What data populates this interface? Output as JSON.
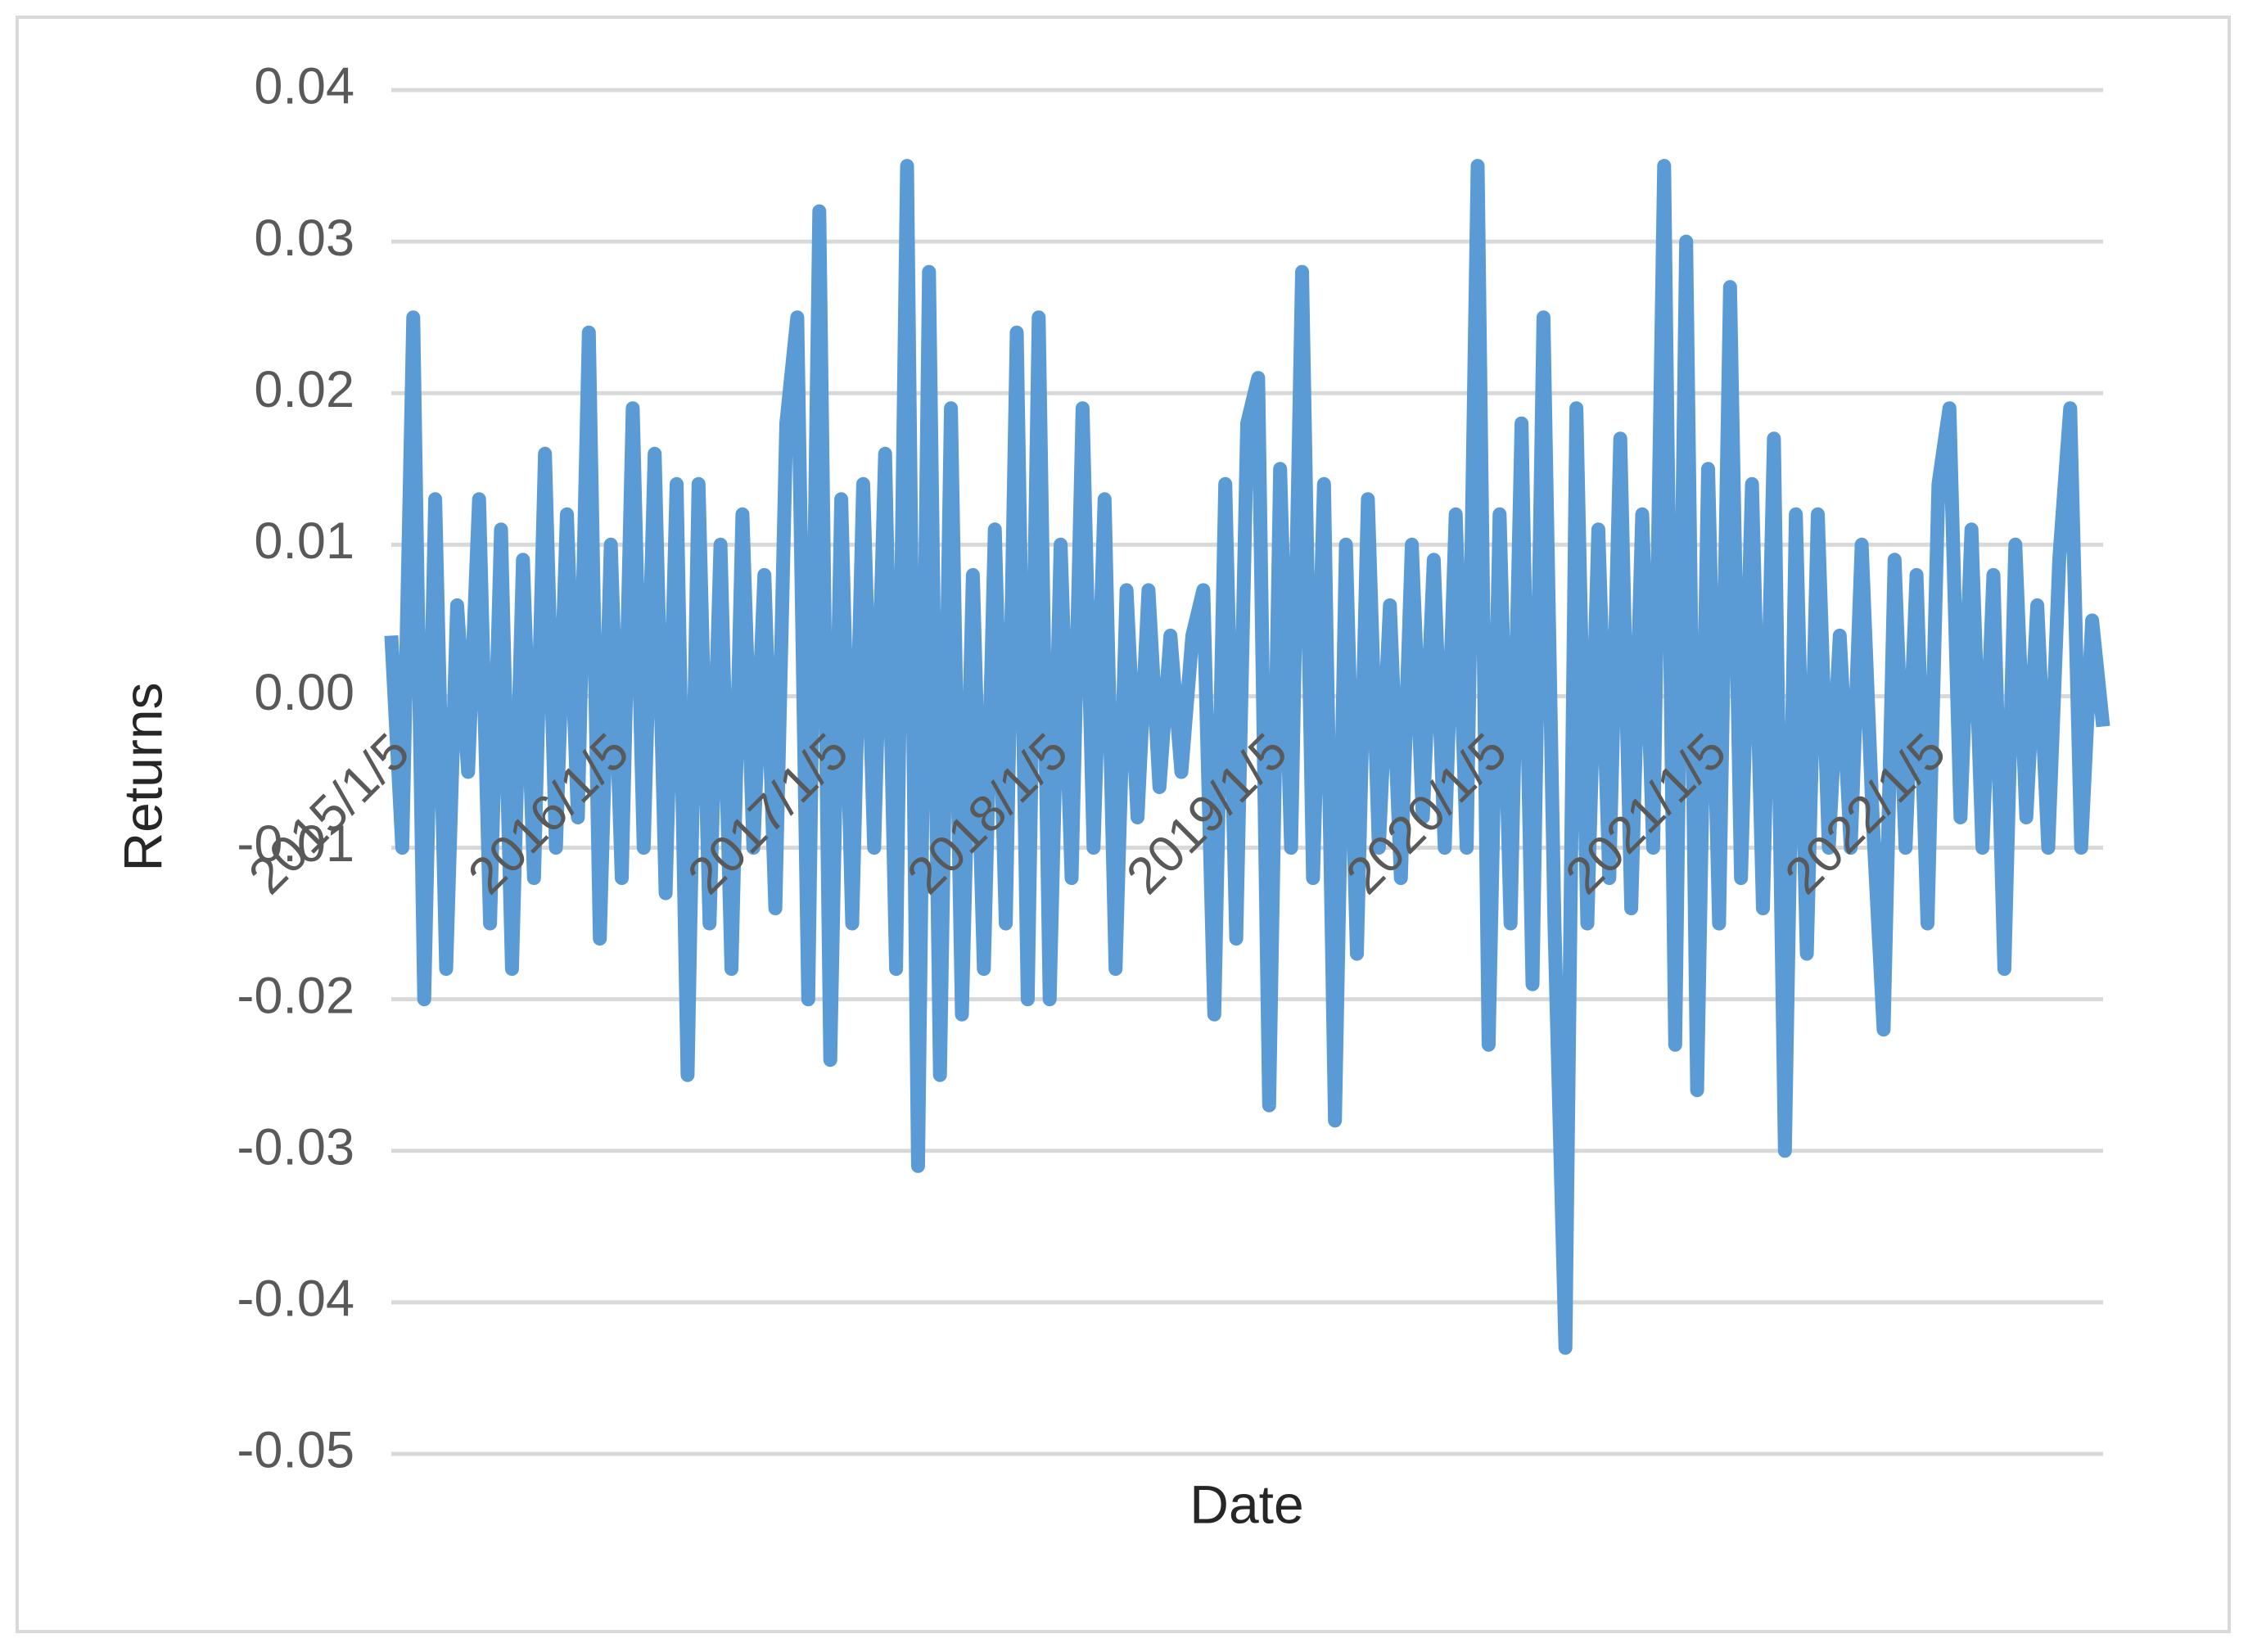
{
  "chart_data": {
    "type": "line",
    "x_label": "Date",
    "y_label": "Returns",
    "categories": [
      "2015/1/5",
      null,
      null,
      null,
      null,
      null,
      null,
      null,
      null,
      null,
      null,
      null,
      null,
      null,
      null,
      null,
      null,
      null,
      null,
      null,
      "2016/1/5",
      null,
      null,
      null,
      null,
      null,
      null,
      null,
      null,
      null,
      null,
      null,
      null,
      null,
      null,
      null,
      null,
      null,
      null,
      null,
      "2017/1/5",
      null,
      null,
      null,
      null,
      null,
      null,
      null,
      null,
      null,
      null,
      null,
      null,
      null,
      null,
      null,
      null,
      null,
      null,
      null,
      "2018/1/5",
      null,
      null,
      null,
      null,
      null,
      null,
      null,
      null,
      null,
      null,
      null,
      null,
      null,
      null,
      null,
      null,
      null,
      null,
      null,
      "2019/1/5",
      null,
      null,
      null,
      null,
      null,
      null,
      null,
      null,
      null,
      null,
      null,
      null,
      null,
      null,
      null,
      null,
      null,
      null,
      null,
      "2020/1/5",
      null,
      null,
      null,
      null,
      null,
      null,
      null,
      null,
      null,
      null,
      null,
      null,
      null,
      null,
      null,
      null,
      null,
      null,
      null,
      "2021/1/5",
      null,
      null,
      null,
      null,
      null,
      null,
      null,
      null,
      null,
      null,
      null,
      null,
      null,
      null,
      null,
      null,
      null,
      null,
      null,
      "2022/1/5",
      null,
      null,
      null,
      null,
      null,
      null,
      null,
      null,
      null,
      null,
      null,
      null,
      null,
      null,
      null,
      null
    ],
    "series": [
      {
        "name": "Returns",
        "color": "#5b9bd5",
        "values": [
          0.004,
          -0.01,
          0.025,
          -0.02,
          0.013,
          -0.018,
          0.006,
          -0.005,
          0.013,
          -0.015,
          0.011,
          -0.018,
          0.009,
          -0.012,
          0.016,
          -0.01,
          0.012,
          -0.008,
          0.024,
          -0.016,
          0.01,
          -0.012,
          0.019,
          -0.01,
          0.016,
          -0.013,
          0.014,
          -0.025,
          0.014,
          -0.015,
          0.01,
          -0.018,
          0.012,
          -0.01,
          0.008,
          -0.014,
          0.018,
          0.025,
          -0.02,
          0.032,
          -0.024,
          0.013,
          -0.015,
          0.014,
          -0.01,
          0.016,
          -0.018,
          0.035,
          -0.031,
          0.028,
          -0.025,
          0.019,
          -0.021,
          0.008,
          -0.018,
          0.011,
          -0.015,
          0.024,
          -0.02,
          0.025,
          -0.02,
          0.01,
          -0.012,
          0.019,
          -0.01,
          0.013,
          -0.018,
          0.007,
          -0.008,
          0.007,
          -0.006,
          0.004,
          -0.005,
          0.004,
          0.007,
          -0.021,
          0.014,
          -0.016,
          0.018,
          0.021,
          -0.027,
          0.015,
          -0.01,
          0.028,
          -0.012,
          0.014,
          -0.028,
          0.01,
          -0.017,
          0.013,
          -0.01,
          0.006,
          -0.012,
          0.01,
          -0.008,
          0.009,
          -0.01,
          0.012,
          -0.01,
          0.035,
          -0.023,
          0.012,
          -0.015,
          0.018,
          -0.019,
          0.025,
          -0.015,
          -0.043,
          0.019,
          -0.015,
          0.011,
          -0.012,
          0.017,
          -0.014,
          0.012,
          -0.01,
          0.035,
          -0.023,
          0.03,
          -0.026,
          0.015,
          -0.015,
          0.027,
          -0.012,
          0.014,
          -0.014,
          0.017,
          -0.03,
          0.012,
          -0.017,
          0.012,
          -0.01,
          0.004,
          -0.01,
          0.01,
          -0.008,
          -0.022,
          0.009,
          -0.01,
          0.008,
          -0.015,
          0.014,
          0.019,
          -0.008,
          0.011,
          -0.01,
          0.008,
          -0.018,
          0.01,
          -0.008,
          0.006,
          -0.01,
          0.009,
          0.019,
          -0.01,
          0.005,
          -0.002
        ]
      }
    ],
    "ylim": [
      -0.05,
      0.04
    ],
    "yticks": [
      -0.05,
      -0.04,
      -0.03,
      -0.02,
      -0.01,
      {
        "value": 0,
        "label": "0.00"
      },
      0.01,
      0.02,
      0.03,
      0.04
    ],
    "grid": true
  }
}
